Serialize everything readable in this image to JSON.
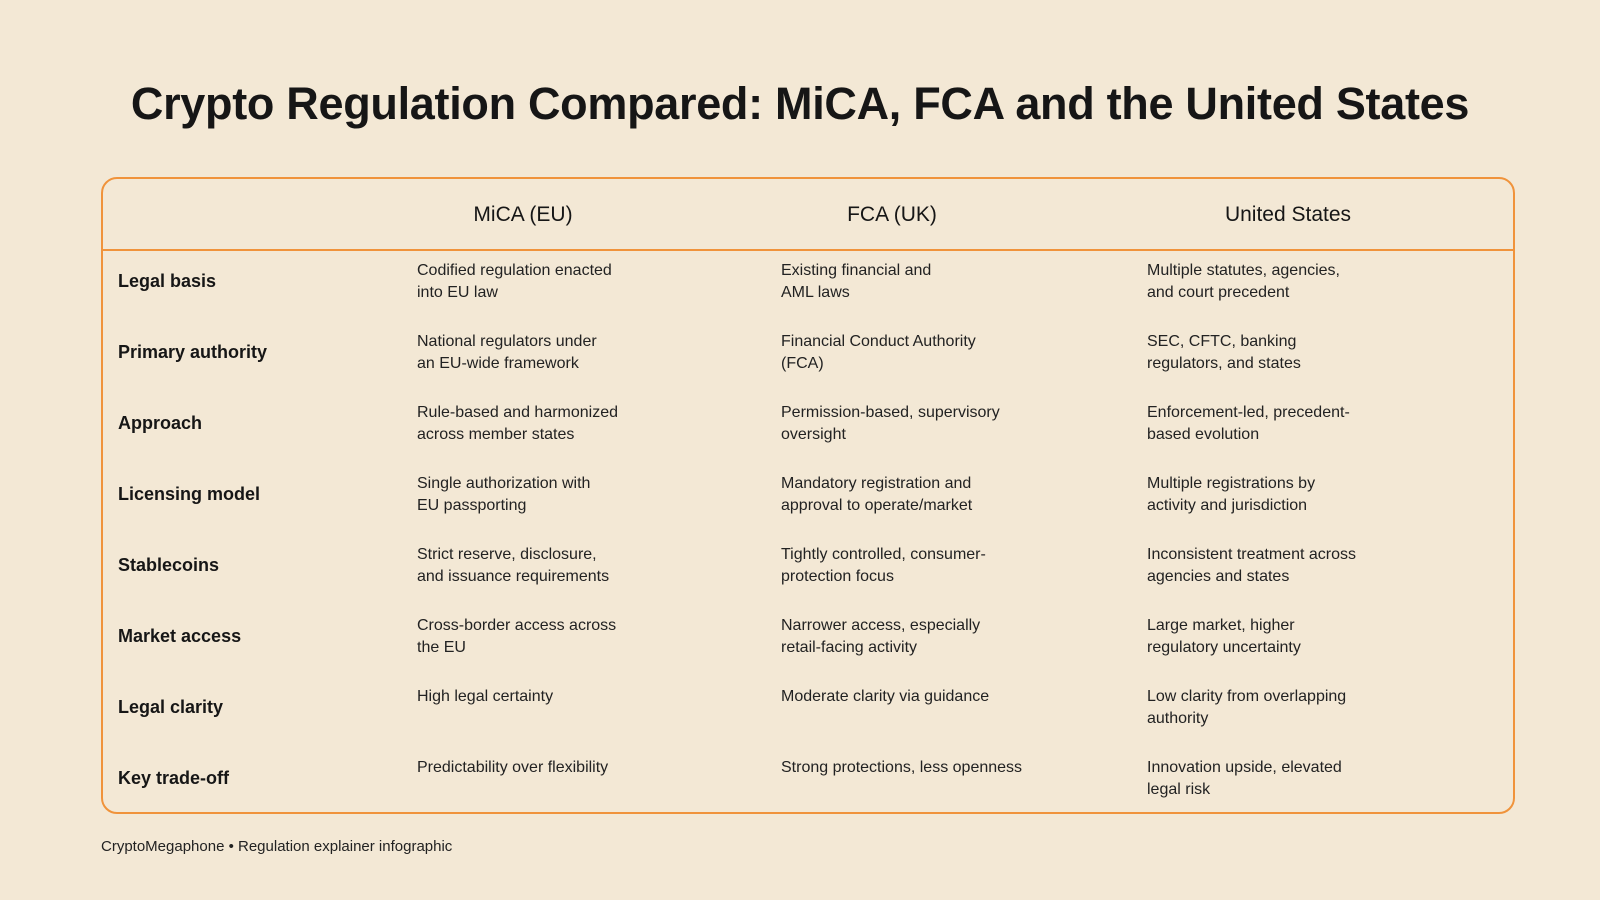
{
  "title": "Crypto Regulation Compared: MiCA, FCA and the United States",
  "colors": {
    "background": "#f3e8d5",
    "accent": "#f0933b",
    "text": "#161616"
  },
  "table": {
    "headers": [
      "MiCA (EU)",
      "FCA (UK)",
      "United States"
    ],
    "rows": [
      {
        "label": "Legal basis",
        "cells": [
          "Codified regulation enacted\ninto EU law",
          "Existing financial and\nAML laws",
          "Multiple statutes, agencies,\nand court precedent"
        ]
      },
      {
        "label": "Primary authority",
        "cells": [
          "National regulators under\nan EU-wide framework",
          "Financial Conduct Authority\n(FCA)",
          "SEC, CFTC, banking\nregulators, and states"
        ]
      },
      {
        "label": "Approach",
        "cells": [
          "Rule-based and harmonized\nacross member states",
          "Permission-based, supervisory\noversight",
          "Enforcement-led, precedent-\nbased evolution"
        ]
      },
      {
        "label": "Licensing model",
        "cells": [
          "Single authorization with\nEU passporting",
          "Mandatory registration and\napproval to operate/market",
          "Multiple registrations by\nactivity and jurisdiction"
        ]
      },
      {
        "label": "Stablecoins",
        "cells": [
          "Strict reserve, disclosure,\nand issuance requirements",
          "Tightly controlled, consumer-\nprotection focus",
          "Inconsistent treatment across\nagencies and states"
        ]
      },
      {
        "label": "Market access",
        "cells": [
          "Cross-border access across\nthe EU",
          "Narrower access, especially\nretail-facing activity",
          "Large market, higher\nregulatory uncertainty"
        ]
      },
      {
        "label": "Legal clarity",
        "cells": [
          "High legal certainty",
          "Moderate clarity via guidance",
          "Low clarity from overlapping\nauthority"
        ]
      },
      {
        "label": "Key trade-off",
        "cells": [
          "Predictability over flexibility",
          "Strong protections, less openness",
          "Innovation upside, elevated\nlegal risk"
        ]
      }
    ]
  },
  "footer": "CryptoMegaphone • Regulation explainer infographic"
}
